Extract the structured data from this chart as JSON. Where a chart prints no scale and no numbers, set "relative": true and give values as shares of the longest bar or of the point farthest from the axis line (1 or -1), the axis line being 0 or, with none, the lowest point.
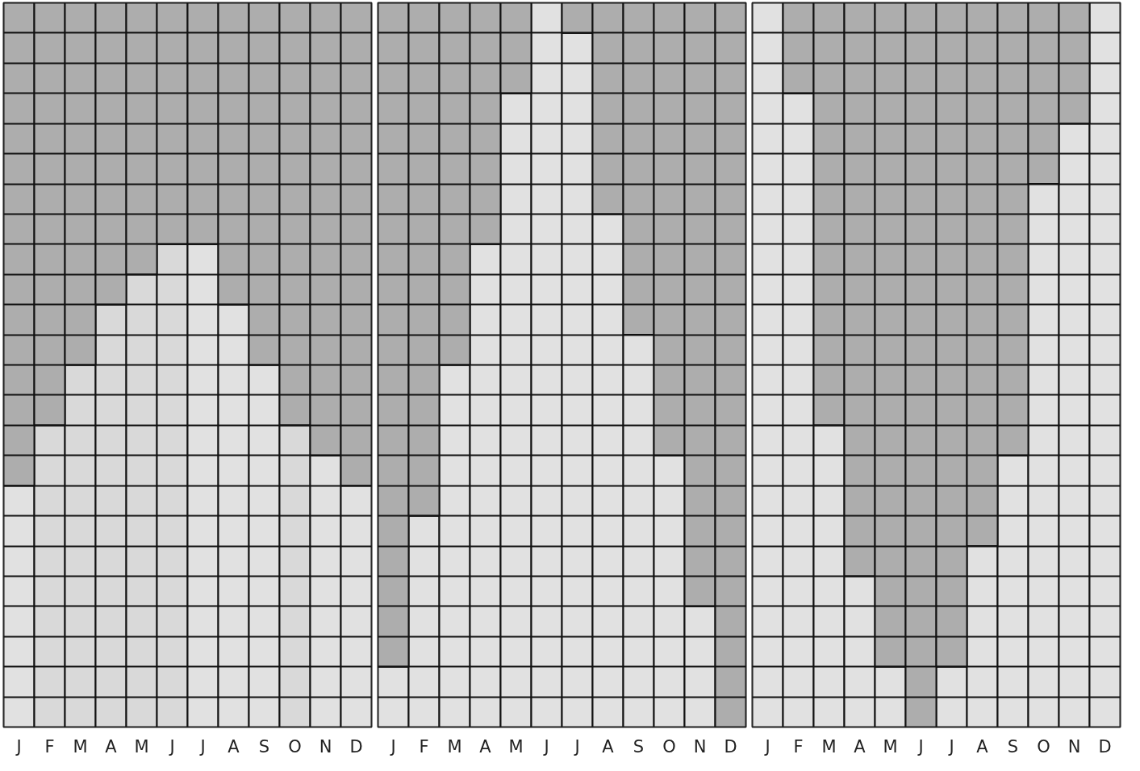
{
  "chart_data": [
    {
      "type": "bar",
      "stacked": true,
      "relative": true,
      "grid": "y",
      "categories": [
        "J",
        "F",
        "M",
        "A",
        "M",
        "J",
        "J",
        "A",
        "S",
        "O",
        "N",
        "D"
      ],
      "series": [
        {
          "colors": [
            "#e1e1e1",
            "#d9d9d9",
            "#d9d9d9",
            "#d9d9d9",
            "#d9d9d9",
            "#d9d9d9",
            "#e1e1e1",
            "#e1e1e1",
            "#e1e1e1",
            "#d9d9d9",
            "#e1e1e1",
            "#e1e1e1"
          ],
          "values": [
            0.3333,
            0.4167,
            0.5,
            0.5833,
            0.625,
            0.6667,
            0.6667,
            0.5833,
            0.5,
            0.4167,
            0.375,
            0.3333
          ]
        },
        {
          "color": "#adadad",
          "values": [
            0.6667,
            0.5833,
            0.5,
            0.4167,
            0.375,
            0.3333,
            0.3333,
            0.4167,
            0.5,
            0.5833,
            0.625,
            0.6667
          ]
        }
      ]
    },
    {
      "type": "bar",
      "stacked": true,
      "relative": true,
      "grid": "y",
      "categories": [
        "J",
        "F",
        "M",
        "A",
        "M",
        "J",
        "J",
        "A",
        "S",
        "O",
        "N",
        "D"
      ],
      "series": [
        {
          "color": "#e1e1e1",
          "values": [
            0.0833,
            0.2917,
            0.5,
            0.6667,
            0.875,
            1,
            0.9583,
            0.7083,
            0.5417,
            0.375,
            0.1667,
            0
          ]
        },
        {
          "color": "#adadad",
          "values": [
            0.9167,
            0.7083,
            0.5,
            0.3333,
            0.125,
            0,
            0.0417,
            0.2917,
            0.4583,
            0.625,
            0.8333,
            1
          ]
        }
      ]
    },
    {
      "type": "bar",
      "stacked": true,
      "relative": true,
      "grid": "y",
      "categories": [
        "J",
        "F",
        "M",
        "A",
        "M",
        "J",
        "J",
        "A",
        "S",
        "O",
        "N",
        "D"
      ],
      "series": [
        {
          "color": "#e1e1e1",
          "values": [
            1,
            0.875,
            0.4167,
            0.2083,
            0.0833,
            0,
            0.0833,
            0.25,
            0.375,
            0.75,
            0.8333,
            1
          ]
        },
        {
          "color": "#adadad",
          "values": [
            0,
            0.125,
            0.5833,
            0.7917,
            0.9167,
            1,
            0.9167,
            0.75,
            0.625,
            0.25,
            0.1667,
            0
          ]
        }
      ]
    }
  ]
}
